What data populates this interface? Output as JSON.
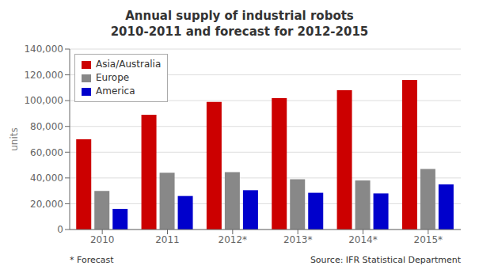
{
  "chart_data": {
    "type": "bar",
    "title": "Annual supply of industrial robots",
    "subtitle": "2010-2011 and forecast for 2012-2015",
    "categories": [
      "2010",
      "2011",
      "2012*",
      "2013*",
      "2014*",
      "2015*"
    ],
    "series": [
      {
        "name": "Asia/Australia",
        "color": "#CC0000",
        "values": [
          70000,
          89000,
          99000,
          102000,
          108000,
          116000
        ]
      },
      {
        "name": "Europe",
        "color": "#888888",
        "values": [
          30000,
          44000,
          44500,
          39000,
          38000,
          47000
        ]
      },
      {
        "name": "America",
        "color": "#0000CC",
        "values": [
          16000,
          26000,
          30500,
          28500,
          28000,
          35000
        ]
      }
    ],
    "ylabel": "units",
    "ylim": [
      0,
      140000
    ],
    "yticks": [
      0,
      {
        "value": 20000,
        "label": "20,000"
      },
      {
        "value": 40000,
        "label": "40,000"
      },
      {
        "value": 60000,
        "label": "60,000"
      },
      {
        "value": 80000,
        "label": "80,000"
      },
      {
        "value": 100000,
        "label": "100,000"
      },
      {
        "value": 120000,
        "label": "120,000"
      },
      {
        "value": 140000,
        "label": "140,000"
      }
    ],
    "grid": true,
    "legend": "upper left",
    "annotations": [
      "* Forecast",
      "Source: IFR Statistical Department"
    ]
  }
}
